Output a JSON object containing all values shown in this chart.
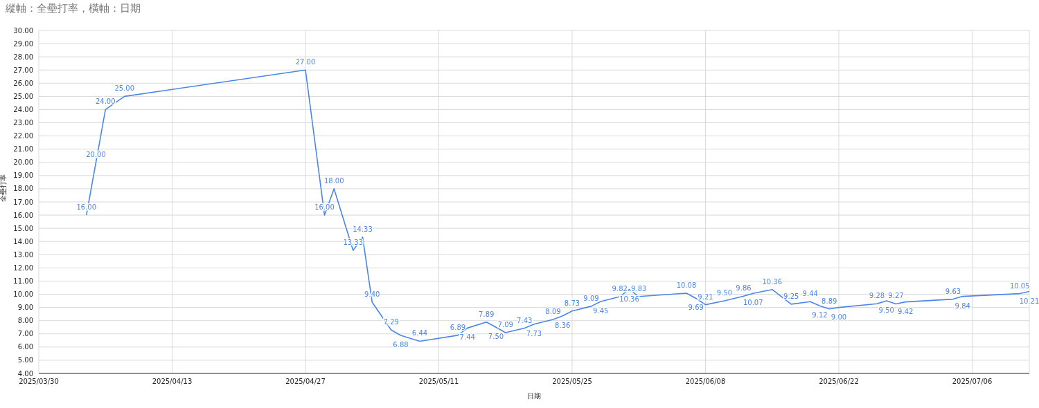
{
  "chart_data": {
    "type": "line",
    "title": "縱軸：全壘打率，橫軸：日期",
    "xlabel": "日期",
    "ylabel": "全壘打率",
    "x": [
      "2025-04-04",
      "2025-04-05",
      "2025-04-06",
      "2025-04-08",
      "2025-04-27",
      "2025-04-29",
      "2025-04-30",
      "2025-05-02",
      "2025-05-03",
      "2025-05-04",
      "2025-05-06",
      "2025-05-07",
      "2025-05-09",
      "2025-05-13",
      "2025-05-14",
      "2025-05-16",
      "2025-05-17",
      "2025-05-18",
      "2025-05-20",
      "2025-05-21",
      "2025-05-23",
      "2025-05-24",
      "2025-05-25",
      "2025-05-27",
      "2025-05-28",
      "2025-05-30",
      "2025-05-31",
      "2025-06-01",
      "2025-06-06",
      "2025-06-07",
      "2025-06-08",
      "2025-06-10",
      "2025-06-12",
      "2025-06-13",
      "2025-06-15",
      "2025-06-17",
      "2025-06-19",
      "2025-06-20",
      "2025-06-21",
      "2025-06-22",
      "2025-06-26",
      "2025-06-27",
      "2025-06-28",
      "2025-06-29",
      "2025-07-04",
      "2025-07-05",
      "2025-07-11",
      "2025-07-12"
    ],
    "series": [
      {
        "color": "#4a86e8",
        "values": [
          16,
          20,
          24,
          25,
          27,
          16,
          18,
          13.33,
          14.33,
          9.4,
          7.29,
          6.88,
          6.44,
          6.89,
          7.44,
          7.89,
          7.5,
          7.09,
          7.43,
          7.73,
          8.09,
          8.36,
          8.73,
          9.09,
          9.45,
          9.82,
          10.36,
          9.83,
          10.08,
          9.69,
          9.21,
          9.5,
          9.86,
          10.07,
          10.36,
          9.25,
          9.44,
          9.12,
          8.89,
          9,
          9.28,
          9.5,
          9.27,
          9.42,
          9.63,
          9.84,
          10.05,
          10.21
        ],
        "value_labels": [
          "16.00",
          "20.00",
          "24.00",
          "25.00",
          "27.00",
          "16.00",
          "18.00",
          "13.33",
          "14.33",
          "9.40",
          "7.29",
          "6.88",
          "6.44",
          "6.89",
          "7.44",
          "7.89",
          "7.50",
          "7.09",
          "7.43",
          "7.73",
          "8.09",
          "8.36",
          "8.73",
          "9.09",
          "9.45",
          "9.82",
          "10.36",
          "9.83",
          "10.08",
          "9.69",
          "9.21",
          "9.50",
          "9.86",
          "10.07",
          "10.36",
          "9.25",
          "9.44",
          "9.12",
          "8.89",
          "9.00",
          "9.28",
          "9.50",
          "9.27",
          "9.42",
          "9.63",
          "9.84",
          "10.05",
          "10.21"
        ]
      }
    ],
    "xlim": [
      "2025-03-30",
      "2025-07-12"
    ],
    "xticks": [
      {
        "value": "2025-03-30",
        "label": "2025/03/30"
      },
      {
        "value": "2025-04-13",
        "label": "2025/04/13"
      },
      {
        "value": "2025-04-27",
        "label": "2025/04/27"
      },
      {
        "value": "2025-05-11",
        "label": "2025/05/11"
      },
      {
        "value": "2025-05-25",
        "label": "2025/05/25"
      },
      {
        "value": "2025-06-08",
        "label": "2025/06/08"
      },
      {
        "value": "2025-06-22",
        "label": "2025/06/22"
      },
      {
        "value": "2025-07-06",
        "label": "2025/07/06"
      }
    ],
    "ylim": [
      4,
      30
    ],
    "yticks": [
      {
        "value": 4,
        "label": "4.00"
      },
      {
        "value": 5,
        "label": "5.00"
      },
      {
        "value": 6,
        "label": "6.00"
      },
      {
        "value": 7,
        "label": "7.00"
      },
      {
        "value": 8,
        "label": "8.00"
      },
      {
        "value": 9,
        "label": "9.00"
      },
      {
        "value": 10,
        "label": "10.00"
      },
      {
        "value": 11,
        "label": "11.00"
      },
      {
        "value": 12,
        "label": "12.00"
      },
      {
        "value": 13,
        "label": "13.00"
      },
      {
        "value": 14,
        "label": "14.00"
      },
      {
        "value": 15,
        "label": "15.00"
      },
      {
        "value": 16,
        "label": "16.00"
      },
      {
        "value": 17,
        "label": "17.00"
      },
      {
        "value": 18,
        "label": "18.00"
      },
      {
        "value": 19,
        "label": "19.00"
      },
      {
        "value": 20,
        "label": "20.00"
      },
      {
        "value": 21,
        "label": "21.00"
      },
      {
        "value": 22,
        "label": "22.00"
      },
      {
        "value": 23,
        "label": "23.00"
      },
      {
        "value": 24,
        "label": "24.00"
      },
      {
        "value": 25,
        "label": "25.00"
      },
      {
        "value": 26,
        "label": "26.00"
      },
      {
        "value": 27,
        "label": "27.00"
      },
      {
        "value": 28,
        "label": "28.00"
      },
      {
        "value": 29,
        "label": "29.00"
      },
      {
        "value": 30,
        "label": "30.00"
      }
    ],
    "grid": true,
    "legend": false,
    "marker": "none",
    "line_style": "solid"
  }
}
